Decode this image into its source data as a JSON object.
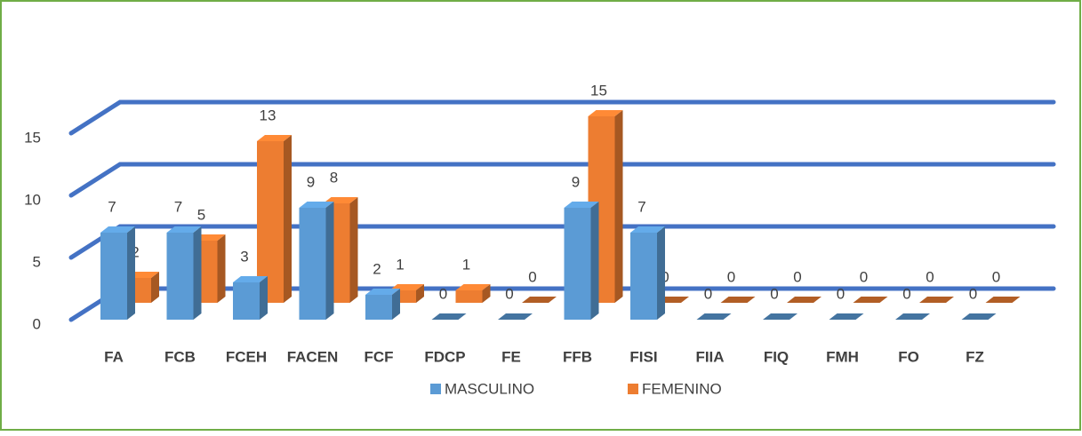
{
  "chart_data": {
    "type": "bar3d",
    "categories": [
      "FA",
      "FCB",
      "FCEH",
      "FACEN",
      "FCF",
      "FDCP",
      "FE",
      "FFB",
      "FISI",
      "FIIA",
      "FIQ",
      "FMH",
      "FO",
      "FZ"
    ],
    "series": [
      {
        "name": "MASCULINO",
        "color": "#5b9bd5",
        "values": [
          7,
          7,
          3,
          9,
          2,
          0,
          0,
          9,
          7,
          0,
          0,
          0,
          0,
          0
        ]
      },
      {
        "name": "FEMENINO",
        "color": "#ed7d31",
        "values": [
          2,
          5,
          13,
          8,
          1,
          1,
          0,
          15,
          0,
          0,
          0,
          0,
          0,
          0
        ]
      }
    ],
    "ylim": [
      0,
      15
    ],
    "yticks": [
      0,
      5,
      10,
      15
    ],
    "grid": true,
    "grid_color": "#4472c4",
    "legend": "bottom"
  }
}
